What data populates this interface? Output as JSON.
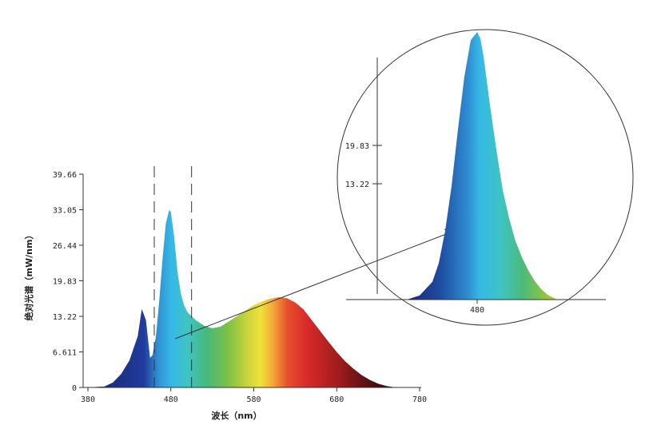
{
  "chart_data": {
    "type": "area",
    "xlabel": "波长（nm）",
    "ylabel": "绝对光谱（mW/nm）",
    "xlim": [
      380,
      780
    ],
    "ylim": [
      0,
      39.66
    ],
    "x_ticks": [
      "380",
      "480",
      "580",
      "680",
      "780"
    ],
    "y_ticks": [
      "0",
      "6.611",
      "13.22",
      "19.83",
      "26.44",
      "33.05",
      "39.66"
    ],
    "grid": false,
    "legend": "none",
    "zoom_range": [
      460,
      505
    ],
    "series": [
      {
        "x": [
          380,
          400,
          410,
          420,
          430,
          440,
          445,
          450,
          455,
          458,
          462,
          466,
          470,
          474,
          478,
          480,
          484,
          488,
          492,
          496,
          500,
          510,
          520,
          530,
          540,
          550,
          560,
          570,
          580,
          590,
          600,
          610,
          620,
          630,
          640,
          650,
          660,
          670,
          680,
          690,
          700,
          710,
          720,
          730,
          740,
          750,
          760,
          770,
          780
        ],
        "y": [
          0,
          0.2,
          0.9,
          2.5,
          5.0,
          9.5,
          14.6,
          12.5,
          5.5,
          6.0,
          9.5,
          16.0,
          24.0,
          30.5,
          33.0,
          32.6,
          28.0,
          21.5,
          17.5,
          15.3,
          14.0,
          12.5,
          11.5,
          11.0,
          11.3,
          12.3,
          13.3,
          14.3,
          15.3,
          16.0,
          16.5,
          16.8,
          16.6,
          15.8,
          14.5,
          12.5,
          10.5,
          8.5,
          6.6,
          4.9,
          3.5,
          2.3,
          1.4,
          0.7,
          0.25,
          0.05,
          0,
          0,
          0
        ]
      }
    ],
    "inset": {
      "x_ticks": [
        "480"
      ],
      "y_ticks": [
        "13.22",
        "19.83"
      ]
    }
  }
}
